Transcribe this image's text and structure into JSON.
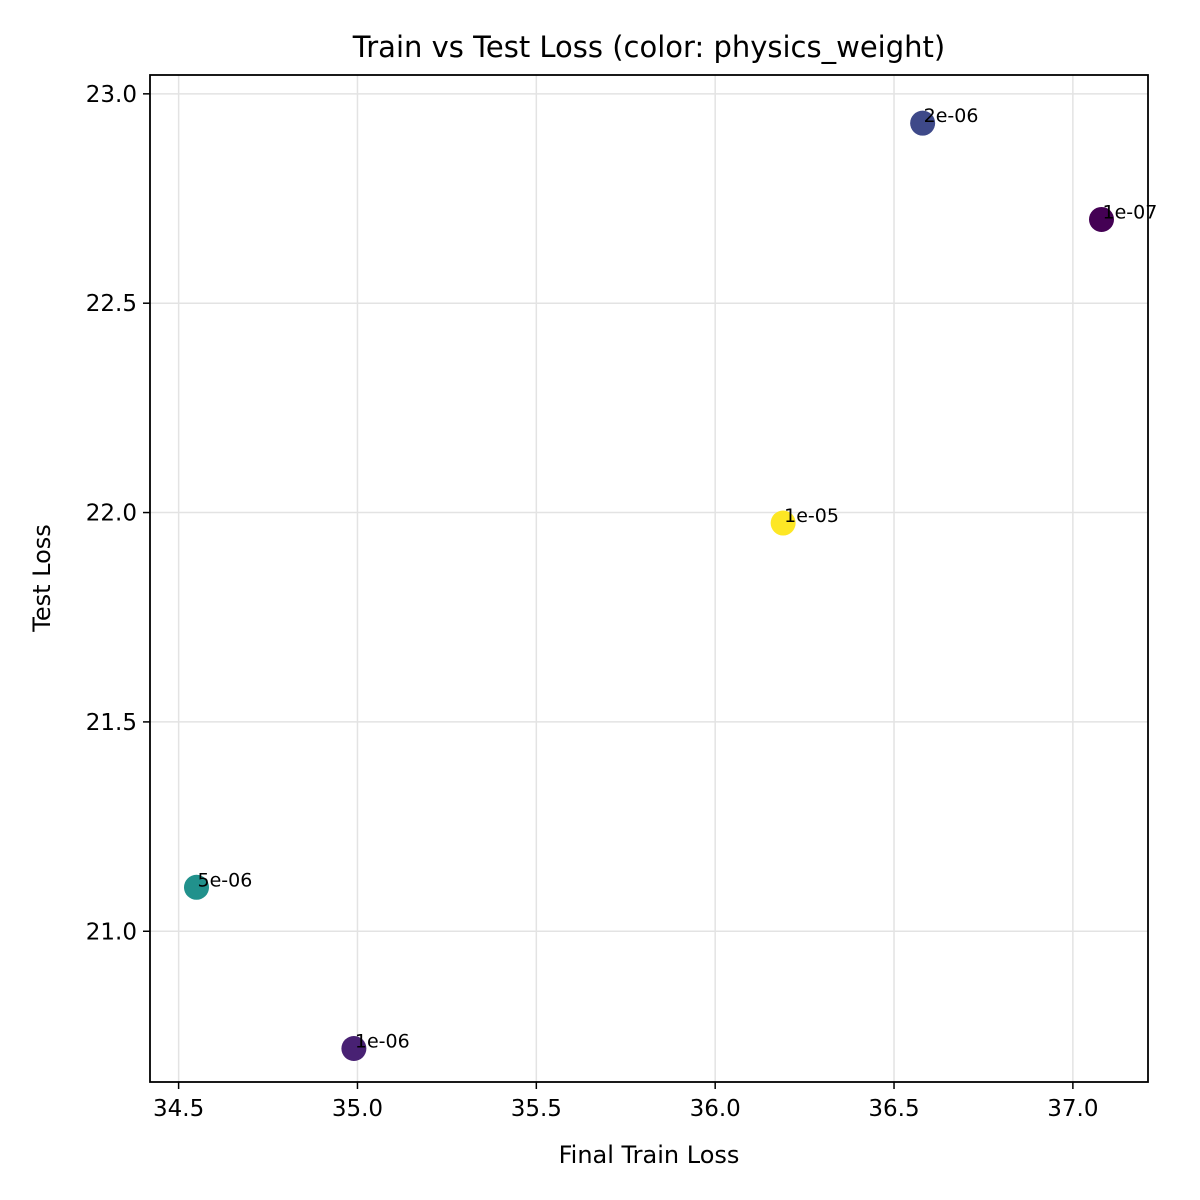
{
  "chart_data": {
    "type": "scatter",
    "title": "Train vs Test Loss (color: physics_weight)",
    "xlabel": "Final Train Loss",
    "ylabel": "Test Loss",
    "xlim": [
      34.42,
      37.21
    ],
    "ylim": [
      20.64,
      23.045
    ],
    "xticks": [
      34.5,
      35.0,
      35.5,
      36.0,
      36.5,
      37.0
    ],
    "xtick_labels": [
      "34.5",
      "35.0",
      "35.5",
      "36.0",
      "36.5",
      "37.0"
    ],
    "yticks": [
      21.0,
      21.5,
      22.0,
      22.5,
      23.0
    ],
    "ytick_labels": [
      "21.0",
      "21.5",
      "22.0",
      "22.5",
      "23.0"
    ],
    "grid": true,
    "points": [
      {
        "x": 36.58,
        "y": 22.93,
        "label": "2e-06",
        "color": "#3e4989"
      },
      {
        "x": 37.08,
        "y": 22.7,
        "label": "1e-07",
        "color": "#440154"
      },
      {
        "x": 36.19,
        "y": 21.975,
        "label": "1e-05",
        "color": "#fde725"
      },
      {
        "x": 34.55,
        "y": 21.105,
        "label": "5e-06",
        "color": "#21918c"
      },
      {
        "x": 34.99,
        "y": 20.72,
        "label": "1e-06",
        "color": "#482173"
      }
    ]
  }
}
